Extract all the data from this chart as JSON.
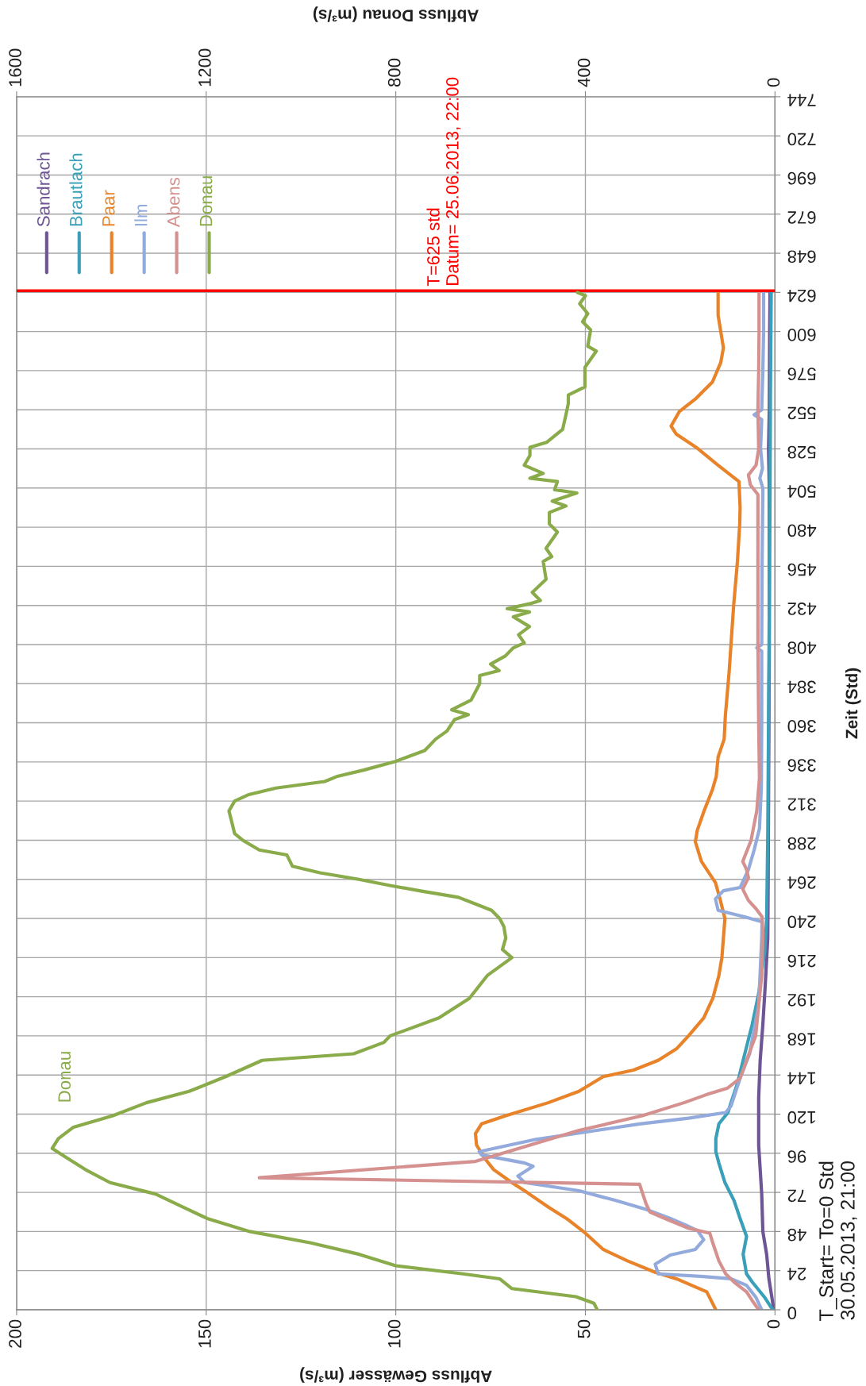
{
  "chart_data": {
    "type": "line",
    "xlabel": "Abfluss Gewässer (m³/s)",
    "x2label": "Abfluss Donau (m³/s)",
    "ylabel": "Zeit (Std)",
    "xlim": [
      200,
      0
    ],
    "xticks": [
      0,
      50,
      100,
      150,
      200
    ],
    "x2lim": [
      1600,
      0
    ],
    "x2ticks": [
      0,
      400,
      800,
      1200,
      1600
    ],
    "ylim": [
      0,
      744
    ],
    "yticks": [
      0,
      24,
      48,
      72,
      96,
      120,
      144,
      168,
      192,
      216,
      240,
      264,
      288,
      312,
      336,
      360,
      384,
      408,
      432,
      456,
      480,
      504,
      528,
      552,
      576,
      600,
      624,
      648,
      672,
      696,
      720,
      744
    ],
    "grid": true,
    "legend": "top left",
    "series": [
      {
        "name": "Sandrach",
        "color": "#6d5596",
        "x": [
          0.3,
          1.6,
          2.2,
          3.2,
          3.5,
          3.9,
          4.3,
          4.3,
          3.9,
          3.2,
          2.6,
          1.9,
          1.8,
          1.7,
          1.6,
          1.5,
          1.5,
          1.5,
          1.7,
          1.5,
          1.4,
          1.3
        ],
        "values": [
          0,
          19,
          34,
          48,
          71,
          86,
          101,
          130,
          153,
          175,
          198,
          228,
          264,
          312,
          360,
          408,
          456,
          504,
          528,
          552,
          600,
          624
        ]
      },
      {
        "name": "Brautlach",
        "color": "#3a9fb8",
        "x": [
          0.6,
          2.7,
          6,
          7.5,
          8.4,
          7.5,
          9.2,
          10.8,
          13.2,
          14.8,
          15.6,
          15.6,
          14.8,
          12.4,
          11.6,
          10,
          8.4,
          6,
          4.3,
          2.7,
          2.2,
          1.9,
          1.7,
          1.5,
          1.3,
          1.2,
          1.0
        ],
        "values": [
          0,
          7.5,
          17,
          22,
          34,
          45,
          56,
          67,
          78,
          90,
          97,
          105,
          114,
          121,
          127,
          138,
          153,
          175,
          194,
          220,
          240,
          292,
          360,
          432,
          504,
          560,
          624
        ]
      },
      {
        "name": "Paar",
        "color": "#e8832a",
        "x": [
          15.6,
          18,
          26,
          31.6,
          38.9,
          45.3,
          50,
          55,
          59.8,
          65.4,
          69.4,
          74.2,
          76.6,
          78.7,
          79,
          77.4,
          71,
          59.8,
          51.7,
          45.3,
          37.3,
          30.8,
          26,
          22.8,
          18.8,
          16.4,
          14.8,
          14,
          13.2,
          14.5,
          15.7,
          18,
          19.4,
          21,
          20.5,
          18.7,
          16.5,
          15.5,
          15,
          13.4,
          13.1,
          12.1,
          10.9,
          9.9,
          9.3,
          9.2,
          9.5,
          15,
          20.8,
          26,
          27.4,
          25.2,
          20.8,
          16.5,
          14.3,
          13.6,
          14.3,
          15,
          15
        ],
        "values": [
          0,
          11,
          19,
          23,
          30,
          37,
          47,
          56,
          63,
          72,
          78,
          86,
          93,
          101,
          108,
          114,
          119,
          127,
          134,
          143,
          147,
          153,
          160,
          168,
          179,
          191,
          205,
          216,
          240,
          252,
          262,
          270,
          275,
          287,
          294,
          306,
          319,
          327,
          339,
          350,
          364,
          391,
          432,
          459,
          482,
          492,
          508,
          518,
          529,
          537,
          542,
          551,
          559,
          569,
          581,
          590,
          600,
          610,
          624
        ]
      },
      {
        "name": "Ilm",
        "color": "#93aadc",
        "x": [
          3.5,
          5,
          7.5,
          11.6,
          19.6,
          30.8,
          31.6,
          27.6,
          21,
          18.8,
          20.4,
          23.6,
          27.6,
          34,
          42,
          51.7,
          66,
          67.8,
          63.8,
          66,
          77.4,
          78,
          63,
          47,
          35.7,
          22.8,
          13,
          11.6,
          9.2,
          6.7,
          4.3,
          3.5,
          3.4,
          8,
          15,
          15.7,
          13.6,
          9.2,
          7,
          5.5,
          4.1,
          3.6,
          3.5,
          3.5,
          4.8,
          3.5,
          3.4,
          3.2,
          4,
          3.3,
          3.8,
          3.5,
          5.5,
          3.5,
          3.2,
          3,
          3
        ],
        "values": [
          0,
          7.5,
          15,
          19,
          20.5,
          22,
          28,
          33.6,
          37,
          43,
          48.5,
          52,
          56,
          61.6,
          67,
          73,
          78,
          82,
          88,
          90,
          95,
          97,
          104.5,
          110,
          114,
          117.5,
          121,
          125,
          142,
          157,
          187,
          228,
          238,
          241,
          245,
          252,
          257,
          259,
          270,
          282,
          295,
          320,
          360,
          404,
          406,
          408,
          456,
          504,
          510,
          516,
          528,
          546,
          549,
          552,
          576,
          600,
          624
        ]
      },
      {
        "name": "Abens",
        "color": "#d4918f",
        "x": [
          4.3,
          6,
          7.5,
          10.8,
          13,
          14.8,
          16.4,
          17.2,
          22.8,
          29,
          33,
          34,
          35,
          35.7,
          136,
          79,
          64.6,
          51.7,
          35,
          24,
          18,
          12.5,
          9.2,
          7.5,
          5.1,
          3.5,
          3.2,
          3.4,
          5,
          7,
          8.5,
          7,
          7.5,
          8.5,
          6.3,
          4.8,
          4.1,
          4.3,
          4.5,
          4.5,
          4.5,
          6.5,
          7,
          5,
          4.3,
          4.5,
          4.3,
          4.2,
          4.2
        ],
        "values": [
          0,
          5.6,
          11,
          17,
          22,
          30,
          41,
          47,
          50,
          56,
          60,
          65,
          72,
          77,
          81,
          91,
          101,
          110,
          119,
          127,
          132,
          136,
          142,
          153,
          168,
          205,
          231,
          241,
          246,
          251,
          258,
          265,
          270,
          275,
          288,
          306,
          326,
          360,
          408,
          456,
          500,
          506,
          512,
          518,
          528,
          552,
          576,
          600,
          624
        ]
      },
      {
        "name": "Donau",
        "color": "#8aab4a",
        "axis": "x2",
        "x": [
          375,
          382,
          420,
          555,
          581,
          658,
          800,
          877,
          979,
          1108,
          1198,
          1249,
          1307,
          1403,
          1455,
          1493,
          1525,
          1512,
          1480,
          1397,
          1326,
          1236,
          1159,
          1082,
          889,
          825,
          812,
          709,
          645,
          607,
          555,
          575,
          568,
          572,
          581,
          598,
          633,
          668,
          750,
          808,
          878,
          960,
          1018,
          1030,
          1088,
          1123,
          1140,
          1146,
          1152,
          1140,
          1110,
          1053,
          950,
          925,
          868,
          804,
          739,
          716,
          692,
          676,
          647,
          682,
          641,
          623,
          623,
          582,
          600,
          569,
          552,
          529,
          541,
          518,
          552,
          518,
          565,
          518,
          495,
          512,
          483,
          489,
          471,
          483,
          459,
          476,
          476,
          441,
          470,
          418,
          465,
          459,
          517,
          489,
          529,
          517,
          517,
          482,
          448,
          441,
          436,
          436,
          401,
          401,
          377,
          395,
          389,
          406,
          395,
          412,
          400,
          417
        ],
        "values": [
          0,
          4,
          8,
          13,
          19,
          22,
          27,
          34,
          41,
          48,
          56,
          63,
          71,
          78,
          86,
          93,
          99,
          105,
          112,
          119,
          127,
          134,
          143,
          153,
          157,
          164,
          168,
          179,
          191,
          205,
          216,
          221,
          228,
          235,
          240,
          245,
          249,
          253,
          257,
          260,
          264,
          268,
          272,
          279,
          282,
          288,
          292,
          299,
          306,
          312,
          316,
          320,
          324,
          327,
          331,
          336,
          343,
          350,
          355,
          362,
          365,
          368,
          374,
          384,
          389,
          392,
          396,
          401,
          406,
          409,
          414,
          419,
          425,
          428,
          430,
          433,
          435,
          440,
          448,
          459,
          462,
          467,
          477,
          482,
          489,
          493,
          496,
          501,
          503,
          508,
          510,
          513,
          518,
          524,
          529,
          532,
          540,
          549,
          556,
          561,
          566,
          578,
          588,
          591,
          601,
          606,
          611,
          617,
          622,
          624
        ]
      }
    ],
    "ref_lines": [
      {
        "axis": "y",
        "value": 625,
        "label": "T=625 std\nDatum= 25.06.2013, 22:00",
        "color": "#ff0000"
      }
    ],
    "annotations": [
      "Donau",
      "T_Start= To=0 Std\n30.05.2013, 21:00"
    ]
  }
}
